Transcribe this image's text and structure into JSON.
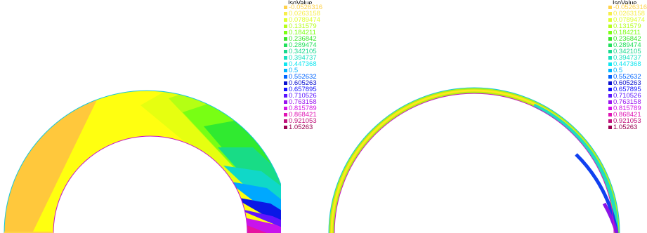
{
  "legend_title": "IsoValue",
  "isovalues": [
    {
      "label": "-0.0526316",
      "color": "#ffd24a"
    },
    {
      "label": "0.0263158",
      "color": "#f7ee4a"
    },
    {
      "label": "0.0789474",
      "color": "#e0ff2e"
    },
    {
      "label": "0.131579",
      "color": "#b6ff1c"
    },
    {
      "label": "0.184211",
      "color": "#7cff14"
    },
    {
      "label": "0.236842",
      "color": "#38e62a"
    },
    {
      "label": "0.289474",
      "color": "#22e05c"
    },
    {
      "label": "0.342105",
      "color": "#18d98e"
    },
    {
      "label": "0.394737",
      "color": "#18e0c0"
    },
    {
      "label": "0.447368",
      "color": "#10e6f0"
    },
    {
      "label": "0.5",
      "color": "#00b4ff"
    },
    {
      "label": "0.552632",
      "color": "#0064ff"
    },
    {
      "label": "0.605263",
      "color": "#0a10d0"
    },
    {
      "label": "0.657895",
      "color": "#1010ff"
    },
    {
      "label": "0.710526",
      "color": "#5a14ff"
    },
    {
      "label": "0.763158",
      "color": "#9a14f0"
    },
    {
      "label": "0.815789",
      "color": "#d214e6"
    },
    {
      "label": "0.868421",
      "color": "#e014b4"
    },
    {
      "label": "0.921053",
      "color": "#c0107a"
    },
    {
      "label": "1.05263",
      "color": "#9a0050"
    }
  ]
}
